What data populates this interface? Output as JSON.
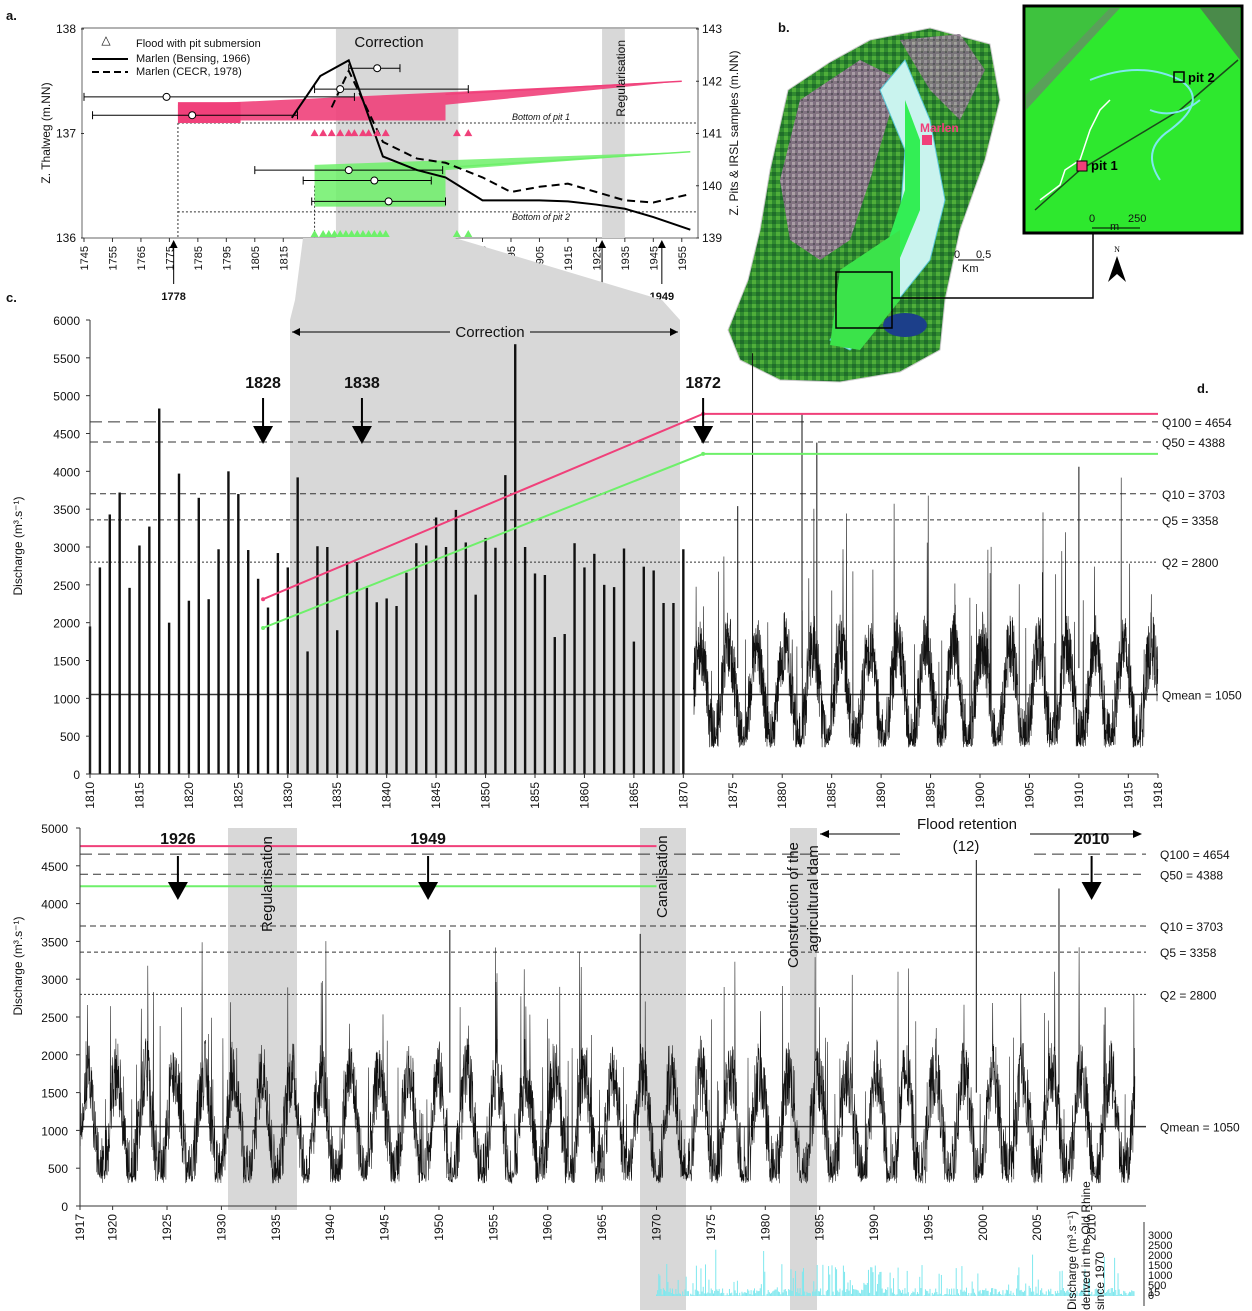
{
  "panel_labels": {
    "a": "a.",
    "b": "b.",
    "c": "c.",
    "d": "d."
  },
  "colors": {
    "pink": "#f0407a",
    "green": "#6ef06a",
    "cyan": "#7fe8ee",
    "period_grey": "#d8d8d8",
    "map_green": "#33cc33"
  },
  "periods": {
    "correction": "Correction",
    "regularisation": "Regularisation",
    "canalisation": "Canalisation",
    "dam": "Construction of the agricultural dam",
    "flood_retention": "Flood retention",
    "flood_retention_note": "(12)"
  },
  "events": [
    "1778",
    "1828",
    "1838",
    "1872",
    "1926",
    "1949"
  ],
  "panel_c_events": [
    "1828",
    "1838",
    "1872"
  ],
  "panel_d_events": [
    "1926",
    "1949",
    "2010"
  ],
  "quantiles": [
    {
      "label": "Q100 = 4654",
      "value": 4654
    },
    {
      "label": "Q50 = 4388",
      "value": 4388
    },
    {
      "label": "Q10 = 3703",
      "value": 3703
    },
    {
      "label": "Q5 = 3358",
      "value": 3358
    },
    {
      "label": "Q2 = 2800",
      "value": 2800
    },
    {
      "label": "Qmean = 1050",
      "value": 1050
    }
  ],
  "map": {
    "marlen": "Marlen",
    "pit1": "pit 1",
    "pit2": "pit 2",
    "scale_b": [
      "0",
      "0.5",
      "Km"
    ],
    "scale_inset": [
      "0",
      "250",
      "m"
    ],
    "north": "N"
  },
  "chart_data": [
    {
      "id": "a",
      "type": "line",
      "ylabel": "Z. Thalweg (m.NN)",
      "y2label": "Z. Pits & IRSL samples (m.NN)",
      "xlim": [
        1745,
        1960
      ],
      "ylim": [
        136,
        138
      ],
      "y2lim": [
        139,
        143
      ],
      "x_ticks": [
        1745,
        1755,
        1765,
        1775,
        1785,
        1795,
        1805,
        1815,
        1825,
        1835,
        1845,
        1855,
        1865,
        1875,
        1885,
        1895,
        1905,
        1915,
        1925,
        1935,
        1945,
        1955
      ],
      "y_ticks": [
        136,
        137,
        138
      ],
      "y2_ticks": [
        139,
        140,
        141,
        142,
        143
      ],
      "legend": [
        "Flood with pit submersion",
        "Marlen (Bensing, 1966)",
        "Marlen (CECR, 1978)"
      ],
      "reference_lines": [
        {
          "label": "Bottom of pit 1",
          "y2": 141.2
        },
        {
          "label": "Bottom of pit 2",
          "y2": 139.5
        }
      ],
      "series": [
        {
          "name": "Marlen (Bensing, 1966)",
          "style": "solid",
          "x": [
            1818,
            1828,
            1838,
            1850,
            1862,
            1872,
            1885,
            1895,
            1905,
            1915,
            1925,
            1935,
            1945,
            1958
          ],
          "y": [
            137.15,
            137.55,
            137.7,
            136.78,
            136.65,
            136.58,
            136.36,
            136.36,
            136.36,
            136.35,
            136.32,
            136.28,
            136.2,
            136.08
          ]
        },
        {
          "name": "Marlen (CECR, 1978)",
          "style": "dashed",
          "x": [
            1832,
            1838,
            1850,
            1862,
            1872,
            1885,
            1895,
            1905,
            1915,
            1925,
            1935,
            1945,
            1958
          ],
          "y": [
            137.25,
            137.6,
            136.92,
            136.76,
            136.72,
            136.58,
            136.44,
            136.49,
            136.52,
            136.44,
            136.36,
            136.34,
            136.42
          ]
        }
      ],
      "flood_triangles": {
        "pit1": [
          1826,
          1829,
          1832,
          1835,
          1838,
          1840,
          1843,
          1845,
          1848,
          1851,
          1876,
          1880
        ],
        "pit2": [
          1826,
          1829,
          1831,
          1833,
          1835,
          1837,
          1839,
          1841,
          1843,
          1845,
          1847,
          1849,
          1851,
          1876,
          1880
        ]
      },
      "irsl_samples": [
        {
          "pit": 1,
          "x": 1774,
          "y2": 141.7,
          "err": [
            1745,
            1840
          ]
        },
        {
          "pit": 1,
          "x": 1783,
          "y2": 141.35,
          "err": [
            1748,
            1820
          ]
        },
        {
          "pit": 1,
          "x": 1835,
          "y2": 141.85,
          "err": [
            1826,
            1880
          ]
        },
        {
          "pit": 1,
          "x": 1848,
          "y2": 142.25,
          "err": [
            1838,
            1856
          ]
        },
        {
          "pit": 2,
          "x": 1838,
          "y2": 140.3,
          "err": [
            1805,
            1871
          ]
        },
        {
          "pit": 2,
          "x": 1847,
          "y2": 140.1,
          "err": [
            1822,
            1867
          ]
        },
        {
          "pit": 2,
          "x": 1852,
          "y2": 139.7,
          "err": [
            1825,
            1872
          ]
        }
      ]
    },
    {
      "id": "c",
      "type": "bar",
      "ylabel": "Discharge (m³.s⁻¹)",
      "xlim": [
        1810,
        1918
      ],
      "ylim": [
        0,
        6000
      ],
      "x_ticks": [
        1810,
        1815,
        1820,
        1825,
        1830,
        1835,
        1840,
        1845,
        1850,
        1855,
        1860,
        1865,
        1870,
        1875,
        1880,
        1885,
        1890,
        1895,
        1900,
        1905,
        1910,
        1915,
        1918
      ],
      "y_ticks": [
        0,
        500,
        1000,
        1500,
        2000,
        2500,
        3000,
        3500,
        4000,
        4500,
        5000,
        5500,
        6000
      ],
      "bar_years": [
        1810,
        1811,
        1812,
        1813,
        1814,
        1815,
        1816,
        1817,
        1818,
        1819,
        1820,
        1821,
        1822,
        1823,
        1824,
        1825,
        1826,
        1827,
        1828,
        1829,
        1830,
        1831,
        1832,
        1833,
        1834,
        1835,
        1836,
        1837,
        1838,
        1839,
        1840,
        1841,
        1842,
        1843,
        1844,
        1845,
        1846,
        1847,
        1848,
        1849,
        1850,
        1851,
        1852,
        1853,
        1854,
        1855,
        1856,
        1857,
        1858,
        1859,
        1860,
        1861,
        1862,
        1863,
        1864,
        1865,
        1866,
        1867,
        1868,
        1869,
        1870
      ],
      "values": [
        1950,
        2730,
        3430,
        3720,
        2460,
        3020,
        3270,
        4830,
        2000,
        3970,
        2290,
        3650,
        2310,
        2970,
        4000,
        3700,
        2960,
        2580,
        2200,
        2920,
        2730,
        3920,
        1620,
        3010,
        3000,
        1900,
        2810,
        2800,
        2460,
        2270,
        2320,
        2220,
        2660,
        3050,
        3020,
        3390,
        3000,
        3490,
        3060,
        2370,
        3120,
        2990,
        3950,
        5680,
        3000,
        2650,
        2630,
        1810,
        1850,
        3050,
        2730,
        2910,
        2500,
        2470,
        2980,
        1750,
        2740,
        2690,
        2260,
        2260,
        2970
      ],
      "daily_series_note": "daily discharge from 1871 (fluctuating ~300-3500 m³/s)",
      "trend_lines": [
        {
          "color": "pink",
          "x": [
            1827.5,
            1872,
            1918
          ],
          "y": [
            2310,
            4760,
            4760
          ]
        },
        {
          "color": "green",
          "x": [
            1827.5,
            1872,
            1918
          ],
          "y": [
            1930,
            4230,
            4230
          ]
        }
      ]
    },
    {
      "id": "d",
      "type": "line",
      "ylabel": "Discharge (m³.s⁻¹)",
      "xlim": [
        1917,
        2015
      ],
      "ylim": [
        0,
        5000
      ],
      "x_ticks": [
        1917,
        1920,
        1925,
        1930,
        1935,
        1940,
        1945,
        1950,
        1955,
        1960,
        1965,
        1970,
        1975,
        1980,
        1985,
        1990,
        1995,
        2000,
        2005,
        2010
      ],
      "y_ticks": [
        0,
        500,
        1000,
        1500,
        2000,
        2500,
        3000,
        3500,
        4000,
        4500,
        5000
      ],
      "daily_series_note": "daily discharge 1917-2014 (fluctuating ~300-4700 m³/s)",
      "peaks": [
        {
          "x": 1999.4,
          "y": 4600
        },
        {
          "x": 2007,
          "y": 4200
        },
        {
          "x": 1951,
          "y": 3650
        },
        {
          "x": 1968.5,
          "y": 3600
        }
      ],
      "old_rhine": {
        "ylabel": "Discharge (m³.s⁻¹) derived in the Old Rhine since 1970",
        "y_ticks": [
          "3000",
          "2500",
          "2000",
          "1500",
          "1000",
          "500",
          "15",
          "0"
        ],
        "start": 1970
      }
    }
  ]
}
